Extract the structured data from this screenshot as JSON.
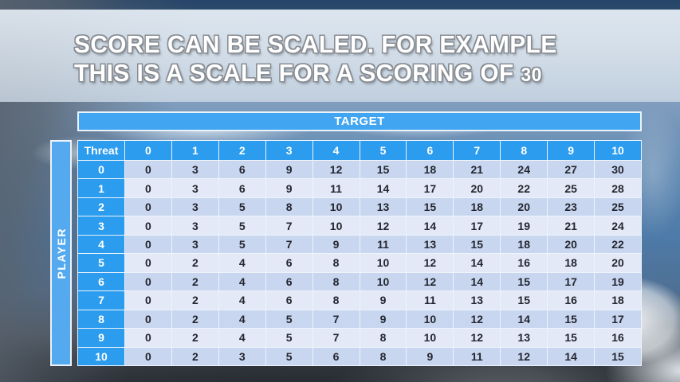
{
  "title": {
    "line1": "SCORE CAN BE SCALED. FOR EXAMPLE",
    "line2": "THIS IS A SCALE FOR A SCORING OF",
    "line2_number": "30"
  },
  "table": {
    "target_label": "TARGET",
    "player_label": "PLAYER",
    "corner_label": "Threat",
    "col_headers": [
      "0",
      "1",
      "2",
      "3",
      "4",
      "5",
      "6",
      "7",
      "8",
      "9",
      "10"
    ],
    "row_headers": [
      "0",
      "1",
      "2",
      "3",
      "4",
      "5",
      "6",
      "7",
      "8",
      "9",
      "10"
    ],
    "rows": [
      [
        0,
        3,
        6,
        9,
        12,
        15,
        18,
        21,
        24,
        27,
        30
      ],
      [
        0,
        3,
        6,
        9,
        11,
        14,
        17,
        20,
        22,
        25,
        28
      ],
      [
        0,
        3,
        5,
        8,
        10,
        13,
        15,
        18,
        20,
        23,
        25
      ],
      [
        0,
        3,
        5,
        7,
        10,
        12,
        14,
        17,
        19,
        21,
        24
      ],
      [
        0,
        3,
        5,
        7,
        9,
        11,
        13,
        15,
        18,
        20,
        22
      ],
      [
        0,
        2,
        4,
        6,
        8,
        10,
        12,
        14,
        16,
        18,
        20
      ],
      [
        0,
        2,
        4,
        6,
        8,
        10,
        12,
        14,
        15,
        17,
        19
      ],
      [
        0,
        2,
        4,
        6,
        8,
        9,
        11,
        13,
        15,
        16,
        18
      ],
      [
        0,
        2,
        4,
        5,
        7,
        9,
        10,
        12,
        14,
        15,
        17
      ],
      [
        0,
        2,
        4,
        5,
        7,
        8,
        10,
        12,
        13,
        15,
        16
      ],
      [
        0,
        2,
        3,
        5,
        6,
        8,
        9,
        11,
        12,
        14,
        15
      ]
    ]
  },
  "colors": {
    "header_blue": "#2b9cee",
    "target_blue": "#41a5f2",
    "player_blue": "#55a9ef",
    "row_even": "#c9d6f0",
    "row_odd": "#e3e9f7",
    "body_text": "#23262f"
  }
}
